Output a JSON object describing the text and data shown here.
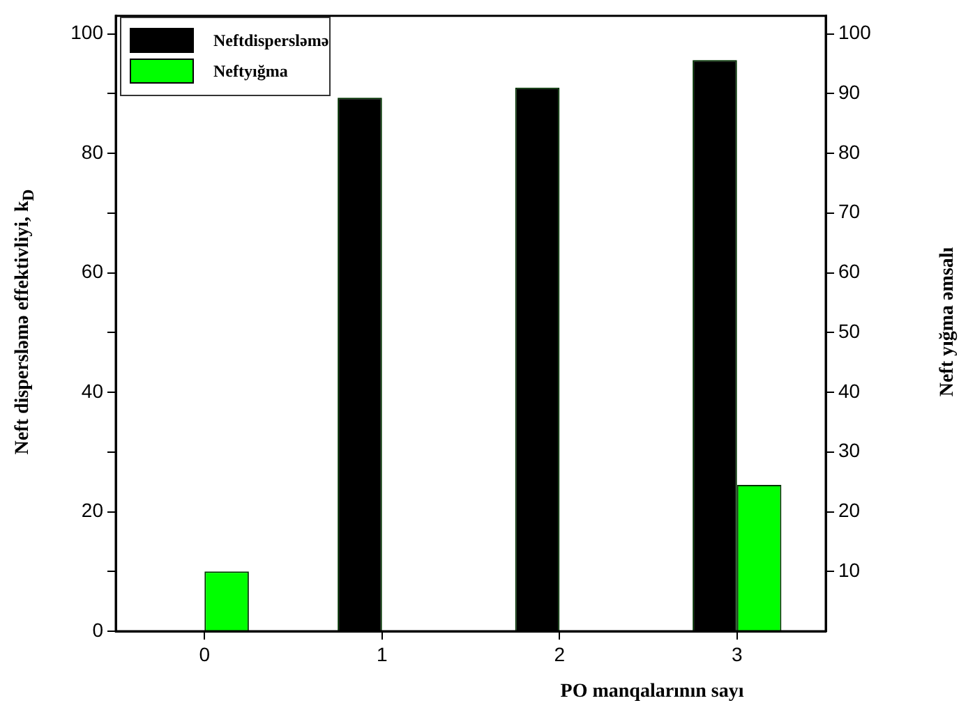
{
  "chart_data": {
    "type": "bar",
    "xlabel": "PO manqalarının sayı",
    "ylabel": "Neft disperslәmә effektivliyi, k$_{D}$",
    "y2label": "Neft yığma әmsalı",
    "categories": [
      "0",
      "1",
      "2",
      "3"
    ],
    "series": [
      {
        "name": "Neftdisperslәmә",
        "color": "#000000",
        "values": [
          null,
          89.3,
          91,
          95.6
        ]
      },
      {
        "name": "Neftyığma",
        "color": "#00ff00",
        "values": [
          10,
          null,
          null,
          24.5
        ]
      }
    ],
    "ylim": [
      0,
      103
    ],
    "yticks": [
      0,
      {
        "value": 10,
        "label": null
      },
      20,
      {
        "value": 30,
        "label": null
      },
      40,
      {
        "value": 50,
        "label": null
      },
      60,
      {
        "value": 70,
        "label": null
      },
      80,
      {
        "value": 90,
        "label": null
      },
      100
    ],
    "y2lim": [
      0,
      103
    ],
    "y2ticks": [
      10,
      20,
      30,
      40,
      50,
      60,
      70,
      80,
      90,
      100
    ],
    "legend": "top left",
    "grid": false
  }
}
